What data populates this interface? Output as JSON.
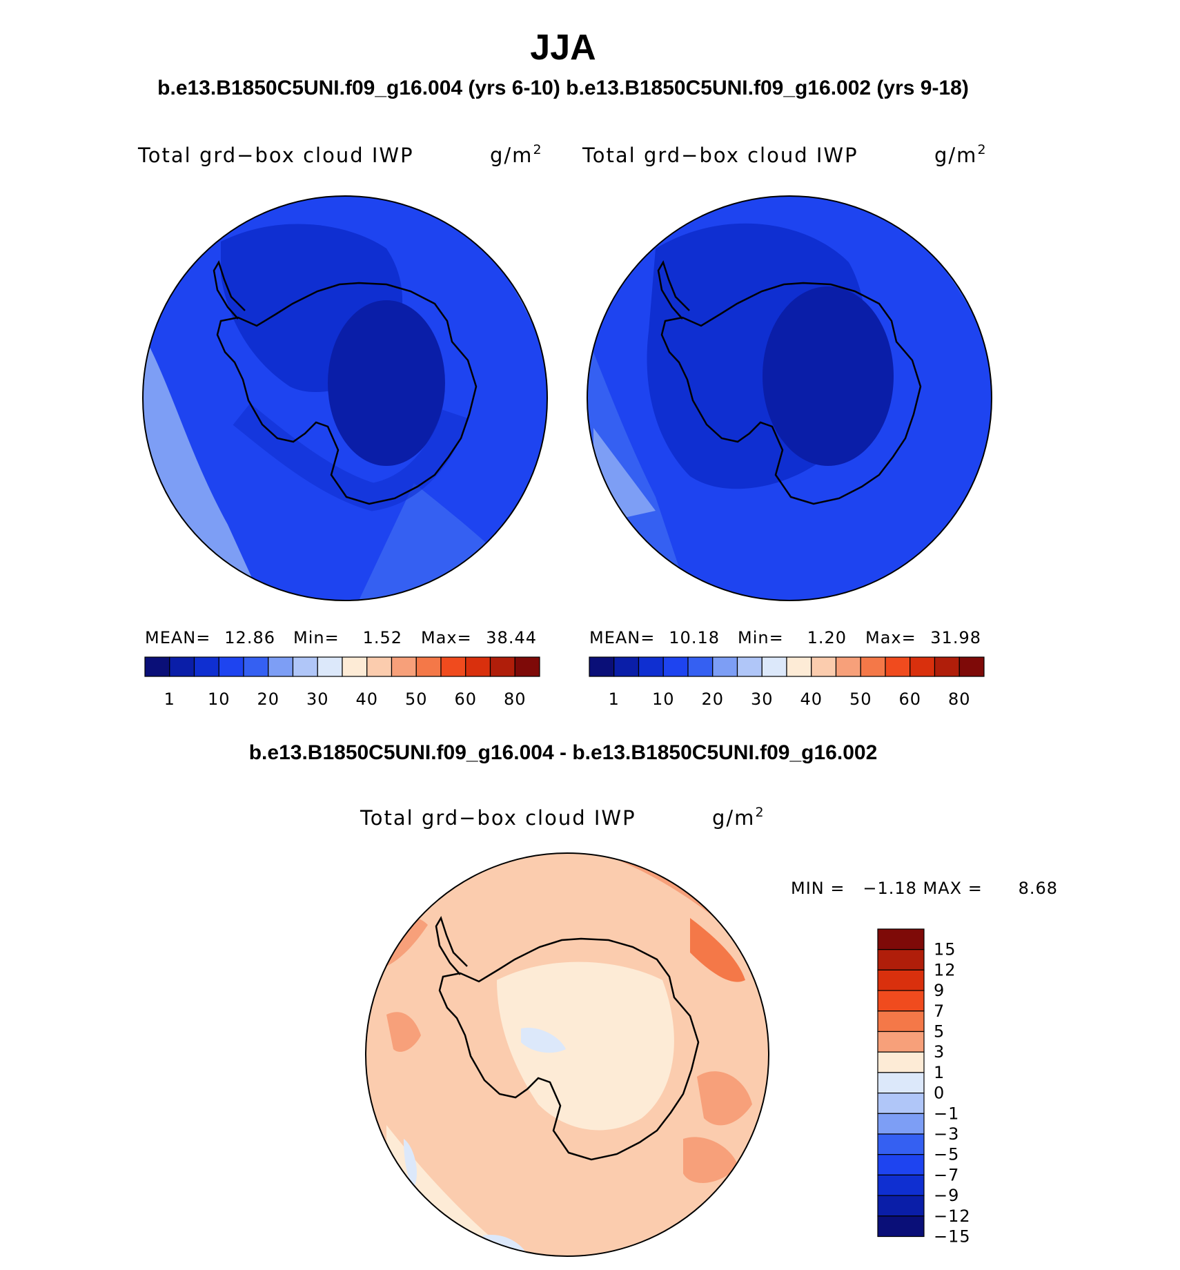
{
  "figure": {
    "title": "JJA",
    "top_case_labels": "b.e13.B1850C5UNI.f09_g16.004 (yrs 6-10) b.e13.B1850C5UNI.f09_g16.002 (yrs 9-18)",
    "diff_label": "b.e13.B1850C5UNI.f09_g16.004 - b.e13.B1850C5UNI.f09_g16.002"
  },
  "panels": [
    {
      "variable": "Total grd−box cloud IWP",
      "units_base": "g/m",
      "units_exp": "2",
      "stats": {
        "mean_label": "MEAN=",
        "mean": "12.86",
        "min_label": "Min=",
        "min": "1.52",
        "max_label": "Max=",
        "max": "38.44"
      }
    },
    {
      "variable": "Total grd−box cloud IWP",
      "units_base": "g/m",
      "units_exp": "2",
      "stats": {
        "mean_label": "MEAN=",
        "mean": "10.18",
        "min_label": "Min=",
        "min": "1.20",
        "max_label": "Max=",
        "max": "31.98"
      }
    }
  ],
  "diff_panel": {
    "variable": "Total grd−box cloud IWP",
    "units_base": "g/m",
    "units_exp": "2",
    "minmax": "MIN =   −1.18 MAX =      8.68"
  },
  "colorbar_abs": {
    "colors": [
      "#0a0f78",
      "#0a1ea8",
      "#0f2fd1",
      "#1e44f0",
      "#3560f2",
      "#7d9ef5",
      "#b0c6f8",
      "#dce8fa",
      "#fdebd6",
      "#fbccae",
      "#f7a07a",
      "#f47848",
      "#f04b1e",
      "#d9300d",
      "#b01e0a",
      "#7e0a08"
    ],
    "ticks": [
      "1",
      "10",
      "20",
      "30",
      "40",
      "50",
      "60",
      "80"
    ]
  },
  "colorbar_diff": {
    "colors": [
      "#7e0a08",
      "#b01e0a",
      "#d9300d",
      "#f04b1e",
      "#f47848",
      "#f7a07a",
      "#fdebd6",
      "#dce8fa",
      "#b0c6f8",
      "#7d9ef5",
      "#3560f2",
      "#1e44f0",
      "#0f2fd1",
      "#0a1ea8",
      "#0a0f78"
    ],
    "ticks": [
      "15",
      "12",
      "9",
      "7",
      "5",
      "3",
      "1",
      "0",
      "−1",
      "−3",
      "−5",
      "−7",
      "−9",
      "−12",
      "−15"
    ]
  }
}
